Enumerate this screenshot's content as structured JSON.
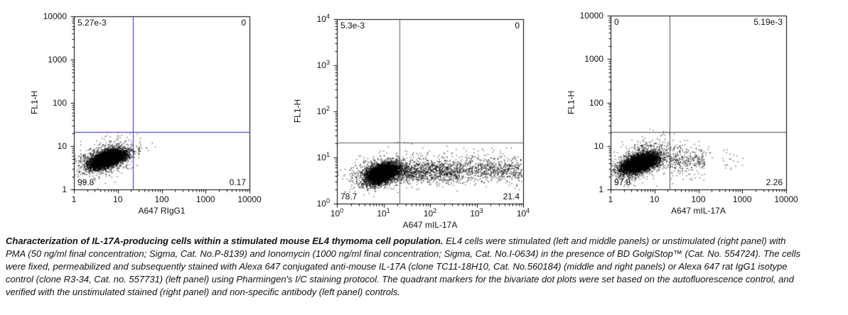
{
  "figure": {
    "background": "#ffffff",
    "dot_color": "#000000"
  },
  "caption": {
    "title_bold": "Characterization of IL-17A-producing cells within a stimulated mouse EL4 thymoma cell population.",
    "body": "EL4 cells were stimulated  (left and middle panels) or unstimulated (right panel) with PMA (50 ng/ml final concentration; Sigma, Cat. No.P-8139) and Ionomycin (1000 ng/ml final concentration; Sigma, Cat. No.I-0634) in the presence of BD GolgiStop™ (Cat. No. 554724). The cells were fixed, permeabilized and subsequently stained with Alexa 647 conjugated anti-mouse IL-17A (clone TC11-18H10, Cat. No.560184) (middle and right panels) or Alexa 647 rat IgG1 isotype control (clone R3-34, Cat. no. 557731) (left panel) using Pharmingen's I/C staining protocol. The quadrant markers for the bivariate dot plots were set based on the autofluorescence control, and verified with the unstimulated stained (right panel) and non-specific antibody  (left panel) controls."
  },
  "chart_data": [
    {
      "panel": "left",
      "type": "scatter",
      "xlabel": "A647 RIgG1",
      "ylabel": "FL1-H",
      "x_scale": "log",
      "y_scale": "log",
      "x_range": [
        1,
        10000
      ],
      "y_range": [
        1,
        10000
      ],
      "tick_label_style": "plain",
      "x_tick_labels": [
        "1",
        "10",
        "100",
        "1000",
        "10000"
      ],
      "y_tick_labels": [
        "10000",
        "1000",
        "100",
        "10",
        "1"
      ],
      "quadrant_marker": {
        "x": 22,
        "y": 21,
        "color": "#2a2ac8"
      },
      "quadrant_percentages": {
        "upper_left": "5.27e-3",
        "upper_right": "0",
        "lower_left": "99.8",
        "lower_right": "0.17"
      },
      "clusters": [
        {
          "n": 5200,
          "cx": 0.76,
          "cy": 0.7,
          "sx": 0.21,
          "sy": 0.11,
          "rho": 0.55
        },
        {
          "n": 800,
          "cx": 0.72,
          "cy": 0.72,
          "sx": 0.34,
          "sy": 0.21,
          "rho": 0.4
        },
        {
          "n": 7,
          "cx": 1.5,
          "cy": 1.05,
          "sx": 0.12,
          "sy": 0.1,
          "rho": 0
        }
      ]
    },
    {
      "panel": "middle",
      "type": "scatter",
      "xlabel": "A647 mIL-17A",
      "ylabel": "FL1-H",
      "x_scale": "log",
      "y_scale": "log",
      "x_range": [
        1,
        10000
      ],
      "y_range": [
        1,
        10000
      ],
      "tick_label_style": "exponent",
      "x_tick_labels": [
        "10^0",
        "10^1",
        "10^2",
        "10^3",
        "10^4"
      ],
      "y_tick_labels": [
        "10^4",
        "10^3",
        "10^2",
        "10^1",
        "10^0"
      ],
      "quadrant_marker": {
        "x": 22,
        "y": 21,
        "color": "#5f5f5f"
      },
      "quadrant_percentages": {
        "upper_left": "5.3e-3",
        "upper_right": "0",
        "lower_left": "78.7",
        "lower_right": "21.4"
      },
      "clusters": [
        {
          "n": 4400,
          "cx": 0.98,
          "cy": 0.66,
          "sx": 0.17,
          "sy": 0.11,
          "rho": 0.4
        },
        {
          "n": 800,
          "cx": 0.88,
          "cy": 0.63,
          "sx": 0.3,
          "sy": 0.17,
          "rho": 0.2
        },
        {
          "n": 1100,
          "type": "uniform_x",
          "x0": 1.25,
          "x1": 2.6,
          "cy": 0.7,
          "sy": 0.13
        },
        {
          "n": 700,
          "type": "uniform_x",
          "x0": 2.6,
          "x1": 3.97,
          "cy": 0.72,
          "sy": 0.14
        },
        {
          "n": 90,
          "type": "uniform_x",
          "x0": 1.25,
          "x1": 3.85,
          "cy": 1.02,
          "sy": 0.12
        },
        {
          "n": 4,
          "cx": 1.36,
          "cy": 1.31,
          "sx": 0.07,
          "sy": 0.03,
          "rho": 0
        }
      ]
    },
    {
      "panel": "right",
      "type": "scatter",
      "xlabel": "A647 mIL-17A",
      "ylabel": "FL1-H",
      "x_scale": "log",
      "y_scale": "log",
      "x_range": [
        1,
        10000
      ],
      "y_range": [
        1,
        10000
      ],
      "tick_label_style": "plain",
      "x_tick_labels": [
        "1",
        "10",
        "100",
        "1000",
        "10000"
      ],
      "y_tick_labels": [
        "10000",
        "1000",
        "100",
        "10",
        "1"
      ],
      "quadrant_marker": {
        "x": 22,
        "y": 21,
        "color": "#4c4c4c"
      },
      "quadrant_percentages": {
        "upper_left": "0",
        "upper_right": "5.19e-3",
        "lower_left": "97.8",
        "lower_right": "2.26"
      },
      "clusters": [
        {
          "n": 5200,
          "cx": 0.67,
          "cy": 0.6,
          "sx": 0.21,
          "sy": 0.11,
          "rho": 0.5
        },
        {
          "n": 900,
          "cx": 0.74,
          "cy": 0.7,
          "sx": 0.31,
          "sy": 0.22,
          "rho": 0.4
        },
        {
          "n": 300,
          "type": "uniform_x",
          "x0": 1.34,
          "x1": 2.15,
          "cy": 0.66,
          "sy": 0.17
        },
        {
          "n": 28,
          "type": "uniform_x",
          "x0": 2.15,
          "x1": 3.05,
          "cy": 0.72,
          "sy": 0.16
        }
      ]
    }
  ]
}
